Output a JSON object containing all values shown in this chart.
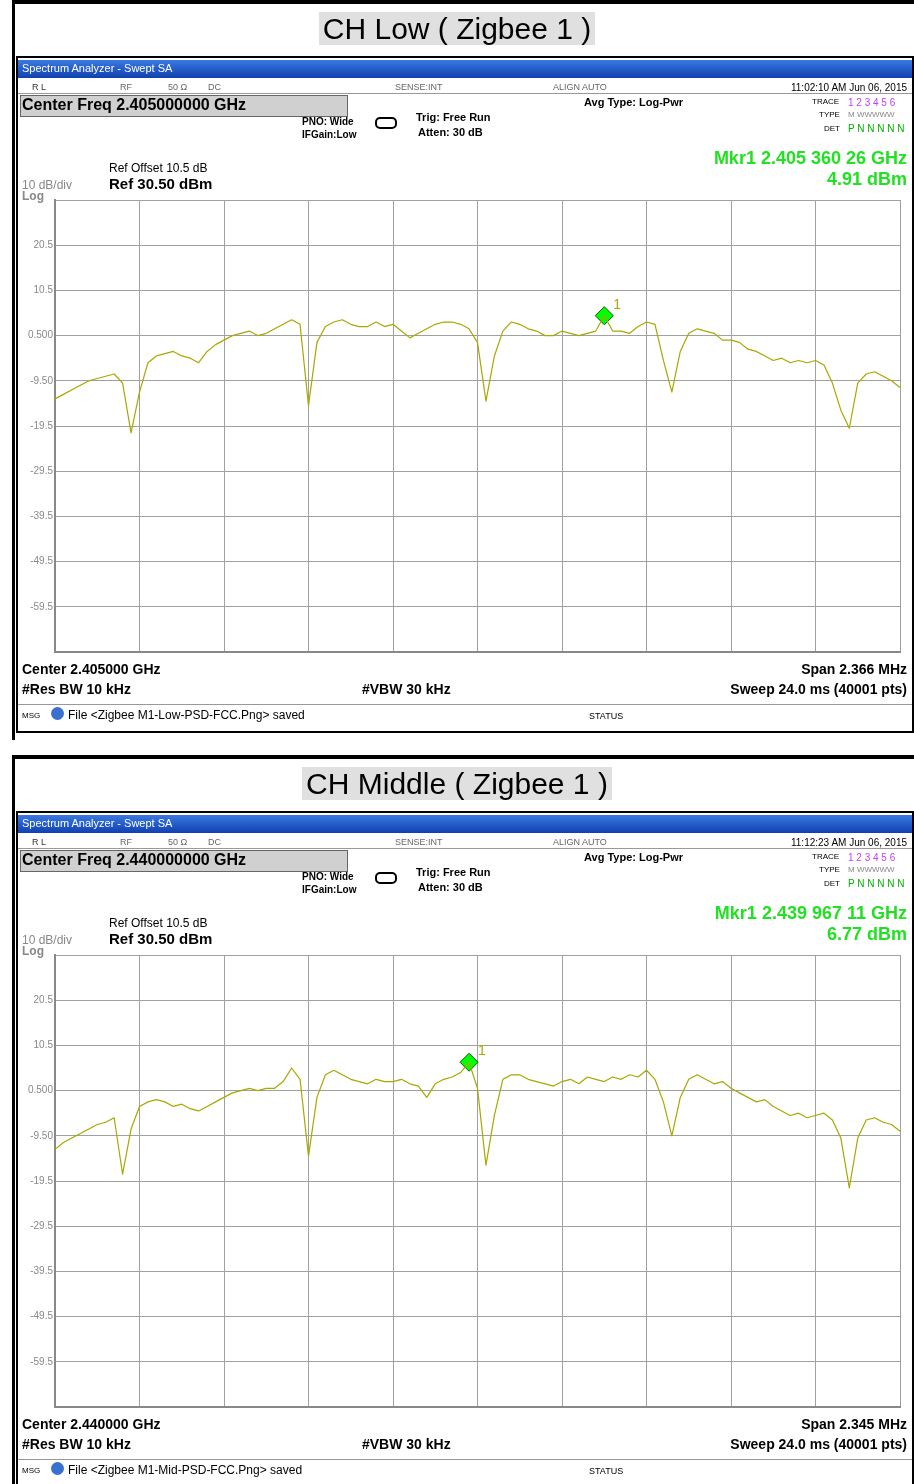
{
  "chart_data": [
    {
      "type": "line",
      "title": "CH Low ( Zigbee 1 )",
      "categories": [
        null,
        null,
        null,
        null,
        null,
        null,
        null,
        null,
        null,
        null,
        null,
        null,
        null,
        null,
        null,
        null,
        null,
        null,
        null,
        null,
        null,
        null,
        null,
        null,
        null,
        null,
        null,
        null,
        null,
        null,
        null,
        null,
        null,
        null,
        null,
        null,
        null,
        null,
        null,
        null,
        null,
        null,
        null,
        null,
        null,
        null,
        null,
        null,
        null,
        null,
        null,
        null,
        null,
        null,
        null,
        null,
        null,
        null,
        null,
        null,
        null,
        null,
        null,
        null,
        null,
        null,
        null,
        null,
        null,
        null,
        null,
        null,
        null,
        null,
        null,
        null,
        null,
        null,
        null,
        null,
        null,
        null,
        null,
        null,
        null,
        null,
        null,
        null,
        null,
        null,
        null,
        null,
        null,
        null,
        null,
        null,
        null,
        null,
        null,
        null,
        null
      ],
      "series": [
        {
          "type": "line",
          "color": "#a8a800",
          "values": [
            -13.5,
            -12.5,
            -11.5,
            -10.5,
            -9.5,
            -9,
            -8.5,
            -8,
            -10,
            -21,
            -12,
            -5.5,
            -4,
            -3.5,
            -3,
            -4,
            -4.5,
            -5.5,
            -3,
            -1.5,
            -0.5,
            0.5,
            1,
            1.5,
            0.5,
            1,
            2,
            3,
            4,
            3,
            -15,
            -1,
            2.5,
            3.5,
            4,
            3,
            2.5,
            2.5,
            3.5,
            2.5,
            3,
            1.5,
            0,
            1,
            2,
            3,
            3.5,
            3.5,
            3,
            2,
            -1,
            -14,
            -4,
            1.5,
            3.5,
            3,
            2,
            1.5,
            0.5,
            0.5,
            1.5,
            1,
            0.5,
            1,
            1.5,
            4.91,
            1.5,
            1.5,
            1,
            2.5,
            3.5,
            3,
            -5,
            -12,
            -3,
            1,
            2,
            1.5,
            1,
            -0.5,
            -0.5,
            -1,
            -2.5,
            -3,
            -4,
            -5,
            -4.5,
            -5.5,
            -5,
            -5.5,
            -5,
            -6,
            -10,
            -16,
            -20,
            -10,
            -8,
            -7.5,
            -8.5,
            -9.5,
            -11
          ]
        },
        {
          "type": "scatter",
          "name": "1",
          "color": "#00ff00",
          "marker": "diamond",
          "values": [
            null,
            null,
            null,
            null,
            null,
            null,
            null,
            null,
            null,
            null,
            null,
            null,
            null,
            null,
            null,
            null,
            null,
            null,
            null,
            null,
            null,
            null,
            null,
            null,
            null,
            null,
            null,
            null,
            null,
            null,
            null,
            null,
            null,
            null,
            null,
            null,
            null,
            null,
            null,
            null,
            null,
            null,
            null,
            null,
            null,
            null,
            null,
            null,
            null,
            null,
            null,
            null,
            null,
            null,
            null,
            null,
            null,
            null,
            null,
            null,
            null,
            null,
            null,
            null,
            null,
            4.91,
            null,
            null,
            null,
            null,
            null,
            null,
            null,
            null,
            null,
            null,
            null,
            null,
            null,
            null,
            null,
            null,
            null,
            null,
            null,
            null,
            null,
            null,
            null,
            null,
            null,
            null,
            null,
            null,
            null,
            null,
            null,
            null,
            null,
            null,
            null
          ]
        }
      ],
      "ylim": [
        -69.5,
        30.5
      ],
      "yticks": [
        {
          "value": 30.5,
          "label": null
        },
        20.5,
        10.5,
        {
          "value": 0.5,
          "label": "0.500"
        },
        {
          "value": -9.5,
          "label": "-9.50"
        },
        -19.5,
        -29.5,
        -39.5,
        -49.5,
        -59.5,
        {
          "value": -69.5,
          "label": null
        }
      ],
      "grid": true,
      "tick_labels": "y",
      "annotations": [
        "Spectrum Analyzer - Swept SA",
        "R L",
        "RF",
        "50 Ω",
        "DC",
        "SENSE:INT",
        "ALIGN AUTO",
        "11:02:10 AM Jun 06, 2015",
        "Center Freq 2.405000000 GHz",
        "Avg Type: Log-Pwr",
        "PNO: Wide",
        "IFGain:Low",
        "Trig: Free Run",
        "Atten: 30 dB",
        "TRACE",
        "1 2 3 4 5 6",
        "TYPE",
        "M WWWWW",
        "DET",
        "P N N N N N",
        "Ref Offset 10.5 dB",
        "Ref 30.50 dBm",
        "10 dB/div",
        "Log",
        "Mkr1 2.405 360 26 GHz",
        "4.91 dBm",
        "Center 2.405000 GHz",
        "Span 2.366 MHz",
        "#Res BW 10 kHz",
        "#VBW 30 kHz",
        "Sweep  24.0 ms (40001 pts)",
        "MSG",
        "File <Zigbee M1-Low-PSD-FCC.Png> saved",
        "STATUS"
      ]
    },
    {
      "type": "line",
      "title": "CH Middle ( Zigbee 1 )",
      "categories": [
        null,
        null,
        null,
        null,
        null,
        null,
        null,
        null,
        null,
        null,
        null,
        null,
        null,
        null,
        null,
        null,
        null,
        null,
        null,
        null,
        null,
        null,
        null,
        null,
        null,
        null,
        null,
        null,
        null,
        null,
        null,
        null,
        null,
        null,
        null,
        null,
        null,
        null,
        null,
        null,
        null,
        null,
        null,
        null,
        null,
        null,
        null,
        null,
        null,
        null,
        null,
        null,
        null,
        null,
        null,
        null,
        null,
        null,
        null,
        null,
        null,
        null,
        null,
        null,
        null,
        null,
        null,
        null,
        null,
        null,
        null,
        null,
        null,
        null,
        null,
        null,
        null,
        null,
        null,
        null,
        null,
        null,
        null,
        null,
        null,
        null,
        null,
        null,
        null,
        null,
        null,
        null,
        null,
        null,
        null,
        null,
        null,
        null,
        null,
        null,
        null
      ],
      "series": [
        {
          "type": "line",
          "color": "#a8a800",
          "values": [
            -12.5,
            -11,
            -10,
            -9,
            -8,
            -7,
            -6.5,
            -5.5,
            -18,
            -8,
            -3,
            -2,
            -1.5,
            -2,
            -3,
            -2.5,
            -3.5,
            -4,
            -3,
            -2,
            -1,
            0,
            0.5,
            1,
            0.5,
            1,
            1,
            2.5,
            5.5,
            3,
            -14,
            -1,
            4,
            5,
            4,
            3,
            2.5,
            2,
            3,
            2.5,
            2.5,
            3,
            2,
            1.5,
            -1,
            2,
            3,
            3.5,
            4.5,
            6.77,
            1,
            -16,
            -5,
            3,
            4,
            4,
            3,
            2.5,
            2,
            1.5,
            2.5,
            3,
            2,
            3.5,
            3,
            2.5,
            3.5,
            3,
            4,
            3.5,
            5,
            3,
            -2,
            -9.5,
            -1,
            3,
            4,
            3,
            2,
            2.5,
            1,
            0,
            -1,
            -2,
            -1.5,
            -3,
            -4,
            -5,
            -4.5,
            -5.5,
            -5,
            -4.5,
            -6,
            -10,
            -21,
            -10,
            -6,
            -5.5,
            -6.5,
            -7,
            -8.5
          ]
        },
        {
          "type": "scatter",
          "name": "1",
          "color": "#00ff00",
          "marker": "diamond",
          "values": [
            null,
            null,
            null,
            null,
            null,
            null,
            null,
            null,
            null,
            null,
            null,
            null,
            null,
            null,
            null,
            null,
            null,
            null,
            null,
            null,
            null,
            null,
            null,
            null,
            null,
            null,
            null,
            null,
            null,
            null,
            null,
            null,
            null,
            null,
            null,
            null,
            null,
            null,
            null,
            null,
            null,
            null,
            null,
            null,
            null,
            null,
            null,
            null,
            null,
            6.77,
            null,
            null,
            null,
            null,
            null,
            null,
            null,
            null,
            null,
            null,
            null,
            null,
            null,
            null,
            null,
            null,
            null,
            null,
            null,
            null,
            null,
            null,
            null,
            null,
            null,
            null,
            null,
            null,
            null,
            null,
            null,
            null,
            null,
            null,
            null,
            null,
            null,
            null,
            null,
            null,
            null,
            null,
            null,
            null,
            null,
            null,
            null,
            null,
            null,
            null,
            null
          ]
        }
      ],
      "ylim": [
        -69.5,
        30.5
      ],
      "yticks": [
        {
          "value": 30.5,
          "label": null
        },
        20.5,
        10.5,
        {
          "value": 0.5,
          "label": "0.500"
        },
        {
          "value": -9.5,
          "label": "-9.50"
        },
        -19.5,
        -29.5,
        -39.5,
        -49.5,
        -59.5,
        {
          "value": -69.5,
          "label": null
        }
      ],
      "grid": true,
      "tick_labels": "y",
      "annotations": [
        "Spectrum Analyzer - Swept SA",
        "R L",
        "RF",
        "50 Ω",
        "DC",
        "SENSE:INT",
        "ALIGN AUTO",
        "11:12:23 AM Jun 06, 2015",
        "Center Freq 2.440000000 GHz",
        "Avg Type: Log-Pwr",
        "PNO: Wide",
        "IFGain:Low",
        "Trig: Free Run",
        "Atten: 30 dB",
        "TRACE",
        "1 2 3 4 5 6",
        "TYPE",
        "M WWWWW",
        "DET",
        "P N N N N N",
        "Ref Offset 10.5 dB",
        "Ref 30.50 dBm",
        "10 dB/div",
        "Log",
        "Mkr1 2.439 967 11 GHz",
        "6.77 dBm",
        "Center 2.440000 GHz",
        "Span 2.345 MHz",
        "#Res BW 10 kHz",
        "#VBW 30 kHz",
        "Sweep  24.0 ms (40001 pts)",
        "MSG",
        "File <Zigbee M1-Mid-PSD-FCC.Png> saved",
        "STATUS"
      ]
    }
  ]
}
